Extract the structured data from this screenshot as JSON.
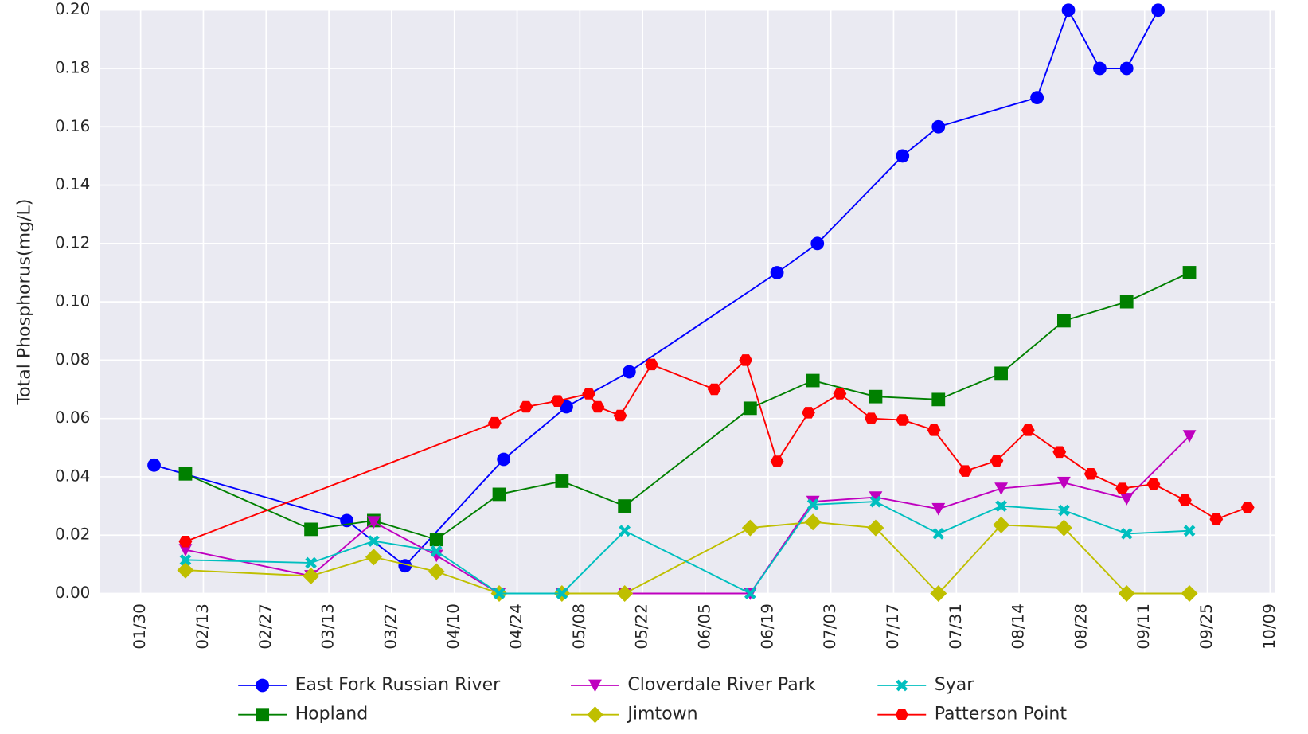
{
  "chart_data": {
    "type": "line",
    "ylabel": "Total Phosphorus(mg/L)",
    "xlim": [
      "01/21",
      "10/10"
    ],
    "xticks": [
      "01/30",
      "02/13",
      "02/27",
      "03/13",
      "03/27",
      "04/10",
      "04/24",
      "05/08",
      "05/22",
      "06/05",
      "06/19",
      "07/03",
      "07/17",
      "07/31",
      "08/14",
      "08/28",
      "09/11",
      "09/25",
      "10/09"
    ],
    "ylim": [
      0,
      0.2
    ],
    "yticks": [
      {
        "value": 0,
        "label": "0.00"
      },
      0.02,
      0.04,
      0.06,
      0.08,
      {
        "value": 0.1,
        "label": "0.10"
      },
      0.12,
      0.14,
      0.16,
      0.18,
      {
        "value": 0.2,
        "label": "0.20"
      }
    ],
    "grid": true,
    "legend": "lower center",
    "series": [
      {
        "name": "East Fork Russian River",
        "color": "#0000ff",
        "marker": "circle",
        "x": [
          "02/02",
          "03/17",
          "03/30",
          "04/21",
          "05/05",
          "05/19",
          "06/21",
          "06/30",
          "07/19",
          "07/27",
          "08/18",
          "08/25",
          "09/01",
          "09/07",
          "09/14"
        ],
        "values": [
          0.044,
          0.025,
          0.0095,
          0.046,
          0.064,
          0.076,
          0.11,
          0.12,
          0.15,
          0.16,
          0.17,
          0.2,
          0.18,
          0.18,
          0.2
        ]
      },
      {
        "name": "Hopland",
        "color": "#008000",
        "marker": "square",
        "x": [
          "02/09",
          "03/09",
          "03/23",
          "04/06",
          "04/20",
          "05/04",
          "05/18",
          "06/15",
          "06/29",
          "07/13",
          "07/27",
          "08/10",
          "08/24",
          "09/07",
          "09/21"
        ],
        "values": [
          0.041,
          0.022,
          0.025,
          0.0185,
          0.034,
          0.0385,
          0.03,
          0.0635,
          0.073,
          0.0675,
          0.0665,
          0.0755,
          0.0935,
          0.1,
          0.11
        ]
      },
      {
        "name": "Cloverdale River Park",
        "color": "#bf00bf",
        "marker": "triangle-down",
        "x": [
          "02/09",
          "03/09",
          "03/23",
          "04/06",
          "04/20",
          "05/04",
          "05/18",
          "06/15",
          "06/29",
          "07/13",
          "07/27",
          "08/10",
          "08/24",
          "09/07",
          "09/21"
        ],
        "values": [
          0.015,
          0.006,
          0.0245,
          0.013,
          0,
          0,
          0,
          0,
          0.0315,
          0.033,
          0.029,
          0.036,
          0.038,
          0.0325,
          0.054
        ]
      },
      {
        "name": "Jimtown",
        "color": "#bfbf00",
        "marker": "diamond",
        "x": [
          "02/09",
          "03/09",
          "03/23",
          "04/06",
          "04/20",
          "05/04",
          "05/18",
          "06/15",
          "06/29",
          "07/13",
          "07/27",
          "08/10",
          "08/24",
          "09/07",
          "09/21"
        ],
        "values": [
          0.008,
          0.006,
          0.0125,
          0.0075,
          0,
          0,
          0,
          0.0225,
          0.0245,
          0.0225,
          0,
          0.0235,
          0.0225,
          0,
          0
        ]
      },
      {
        "name": "Syar",
        "color": "#00bfbf",
        "marker": "x",
        "x": [
          "02/09",
          "03/09",
          "03/23",
          "04/06",
          "04/20",
          "05/04",
          "05/18",
          "06/15",
          "06/29",
          "07/13",
          "07/27",
          "08/10",
          "08/24",
          "09/07",
          "09/21"
        ],
        "values": [
          0.0115,
          0.0105,
          0.018,
          0.0145,
          0,
          0,
          0.0215,
          0,
          0.0305,
          0.0315,
          0.0205,
          0.03,
          0.0285,
          0.0205,
          0.0215
        ]
      },
      {
        "name": "Patterson Point",
        "color": "#ff0000",
        "marker": "hexagon",
        "x": [
          "02/09",
          "04/19",
          "04/26",
          "05/03",
          "05/10",
          "05/12",
          "05/17",
          "05/24",
          "06/07",
          "06/14",
          "06/21",
          "06/28",
          "07/05",
          "07/12",
          "07/19",
          "07/26",
          "08/02",
          "08/09",
          "08/16",
          "08/23",
          "08/30",
          "09/06",
          "09/13",
          "09/20",
          "09/27",
          "10/04"
        ],
        "values": [
          0.0178,
          0.0585,
          0.064,
          0.066,
          0.0685,
          0.064,
          0.061,
          0.0785,
          0.07,
          0.08,
          0.0453,
          0.062,
          0.0685,
          0.06,
          0.0595,
          0.056,
          0.042,
          0.0455,
          0.056,
          0.0485,
          0.041,
          0.036,
          0.0375,
          0.032,
          0.0255,
          0.0295
        ]
      }
    ]
  }
}
